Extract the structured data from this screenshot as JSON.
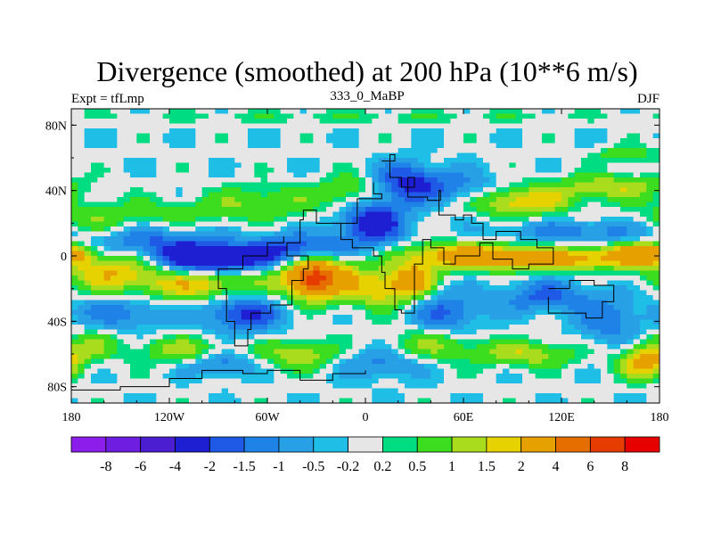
{
  "chart_data": {
    "type": "heatmap",
    "title": "Divergence (smoothed) at 200 hPa (10**6 m/s)",
    "subtitle_left": "Expt = tfLmp",
    "subtitle_center": "333_0_MaBP",
    "subtitle_right": "DJF",
    "x_range": [
      -180,
      180
    ],
    "y_range": [
      -90,
      90
    ],
    "x_ticks": [
      {
        "value": -180,
        "label": "180"
      },
      {
        "value": -120,
        "label": "120W"
      },
      {
        "value": -60,
        "label": "60W"
      },
      {
        "value": 0,
        "label": "0"
      },
      {
        "value": 60,
        "label": "60E"
      },
      {
        "value": 120,
        "label": "120E"
      },
      {
        "value": 180,
        "label": "180"
      }
    ],
    "y_ticks": [
      {
        "value": 80,
        "label": "80N"
      },
      {
        "value": 40,
        "label": "40N"
      },
      {
        "value": 0,
        "label": "0"
      },
      {
        "value": -40,
        "label": "40S"
      },
      {
        "value": -80,
        "label": "80S"
      }
    ],
    "colorbar": {
      "levels": [
        "-8",
        "-6",
        "-4",
        "-2",
        "-1.5",
        "-1",
        "-0.5",
        "-0.2",
        "0.2",
        "0.5",
        "1",
        "1.5",
        "2",
        "4",
        "6",
        "8"
      ],
      "colors": [
        "#8c1eec",
        "#6e1ee0",
        "#4b1ed2",
        "#1e1ed2",
        "#1e5ae6",
        "#1e82e6",
        "#28a0e6",
        "#1ebee6",
        "#e6e6e6",
        "#00dc82",
        "#3cdc1e",
        "#aadc1e",
        "#e6d200",
        "#e6a000",
        "#e66e00",
        "#e63c00",
        "#e60000"
      ]
    },
    "field": {
      "background": -0.1,
      "blobs": [
        {
          "lon": -170,
          "lat": 20,
          "rx": 25,
          "ry": 12,
          "amp": 0.8
        },
        {
          "lon": -120,
          "lat": 26,
          "rx": 60,
          "ry": 9,
          "amp": 0.7
        },
        {
          "lon": -60,
          "lat": 34,
          "rx": 35,
          "ry": 10,
          "amp": 1.0
        },
        {
          "lon": -10,
          "lat": 40,
          "rx": 18,
          "ry": 10,
          "amp": 1.2
        },
        {
          "lon": -130,
          "lat": 8,
          "rx": 45,
          "ry": 9,
          "amp": -1.5
        },
        {
          "lon": -95,
          "lat": -2,
          "rx": 30,
          "ry": 8,
          "amp": -3.5
        },
        {
          "lon": -40,
          "lat": 3,
          "rx": 30,
          "ry": 10,
          "amp": -2.5
        },
        {
          "lon": 5,
          "lat": 20,
          "rx": 20,
          "ry": 14,
          "amp": -2.5
        },
        {
          "lon": 25,
          "lat": 45,
          "rx": 18,
          "ry": 12,
          "amp": -2.0
        },
        {
          "lon": 55,
          "lat": 42,
          "rx": 25,
          "ry": 10,
          "amp": -1.2
        },
        {
          "lon": 95,
          "lat": 33,
          "rx": 30,
          "ry": 9,
          "amp": 2.0
        },
        {
          "lon": 150,
          "lat": 42,
          "rx": 35,
          "ry": 8,
          "amp": 1.5
        },
        {
          "lon": 160,
          "lat": 62,
          "rx": 20,
          "ry": 5,
          "amp": 1.0
        },
        {
          "lon": 130,
          "lat": 15,
          "rx": 50,
          "ry": 7,
          "amp": -1.2
        },
        {
          "lon": 60,
          "lat": 0,
          "rx": 40,
          "ry": 8,
          "amp": 2.5
        },
        {
          "lon": 120,
          "lat": -2,
          "rx": 50,
          "ry": 7,
          "amp": 2.5
        },
        {
          "lon": 170,
          "lat": 2,
          "rx": 20,
          "ry": 6,
          "amp": 3.0
        },
        {
          "lon": -155,
          "lat": -10,
          "rx": 30,
          "ry": 12,
          "amp": 2.0
        },
        {
          "lon": -100,
          "lat": -18,
          "rx": 35,
          "ry": 10,
          "amp": 2.0
        },
        {
          "lon": -30,
          "lat": -12,
          "rx": 22,
          "ry": 14,
          "amp": 4.5
        },
        {
          "lon": -32,
          "lat": -15,
          "rx": 8,
          "ry": 6,
          "amp": 4.0
        },
        {
          "lon": 10,
          "lat": -20,
          "rx": 18,
          "ry": 12,
          "amp": 2.0
        },
        {
          "lon": 30,
          "lat": -15,
          "rx": 12,
          "ry": 10,
          "amp": 2.5
        },
        {
          "lon": -150,
          "lat": -35,
          "rx": 30,
          "ry": 10,
          "amp": -1.2
        },
        {
          "lon": -75,
          "lat": -35,
          "rx": 25,
          "ry": 12,
          "amp": -2.0
        },
        {
          "lon": 50,
          "lat": -35,
          "rx": 20,
          "ry": 12,
          "amp": -1.5
        },
        {
          "lon": 110,
          "lat": -25,
          "rx": 30,
          "ry": 10,
          "amp": -1.5
        },
        {
          "lon": 150,
          "lat": -40,
          "rx": 20,
          "ry": 15,
          "amp": -1.2
        },
        {
          "lon": -170,
          "lat": -55,
          "rx": 20,
          "ry": 10,
          "amp": 1.0
        },
        {
          "lon": -110,
          "lat": -58,
          "rx": 30,
          "ry": 8,
          "amp": 1.5
        },
        {
          "lon": -40,
          "lat": -60,
          "rx": 25,
          "ry": 9,
          "amp": 1.5
        },
        {
          "lon": 40,
          "lat": -55,
          "rx": 30,
          "ry": 10,
          "amp": 1.2
        },
        {
          "lon": 100,
          "lat": -60,
          "rx": 30,
          "ry": 8,
          "amp": 1.5
        },
        {
          "lon": 170,
          "lat": -65,
          "rx": 15,
          "ry": 10,
          "amp": 2.5
        },
        {
          "lon": -90,
          "lat": -65,
          "rx": 20,
          "ry": 8,
          "amp": -1.5
        },
        {
          "lon": 10,
          "lat": -65,
          "rx": 25,
          "ry": 10,
          "amp": -1.2
        },
        {
          "lon": 0,
          "lat": 85,
          "rx": 200,
          "ry": 4,
          "amp": 0.5
        }
      ]
    },
    "continent_outline": [
      [
        [
          10,
          58
        ],
        [
          18,
          62
        ],
        [
          15,
          48
        ],
        [
          22,
          42
        ],
        [
          30,
          48
        ],
        [
          26,
          36
        ],
        [
          38,
          34
        ],
        [
          46,
          40
        ],
        [
          45,
          25
        ],
        [
          55,
          22
        ],
        [
          60,
          25
        ],
        [
          65,
          20
        ],
        [
          72,
          10
        ],
        [
          80,
          15
        ],
        [
          95,
          10
        ],
        [
          105,
          5
        ],
        [
          115,
          -5
        ],
        [
          100,
          -8
        ],
        [
          90,
          -2
        ],
        [
          78,
          8
        ],
        [
          70,
          0
        ],
        [
          55,
          -5
        ],
        [
          48,
          5
        ],
        [
          40,
          10
        ],
        [
          35,
          -5
        ],
        [
          30,
          -35
        ],
        [
          22,
          -33
        ],
        [
          18,
          -20
        ],
        [
          12,
          -10
        ],
        [
          10,
          0
        ],
        [
          5,
          5
        ],
        [
          -8,
          10
        ],
        [
          -15,
          20
        ],
        [
          -5,
          35
        ],
        [
          10,
          38
        ],
        [
          5,
          45
        ]
      ],
      [
        [
          -15,
          20
        ],
        [
          -30,
          28
        ],
        [
          -38,
          22
        ],
        [
          -40,
          8
        ],
        [
          -48,
          0
        ],
        [
          -35,
          -8
        ],
        [
          -38,
          -15
        ],
        [
          -45,
          -30
        ],
        [
          -58,
          -35
        ],
        [
          -70,
          -45
        ],
        [
          -72,
          -55
        ],
        [
          -80,
          -40
        ],
        [
          -85,
          -20
        ],
        [
          -90,
          -8
        ],
        [
          -75,
          0
        ],
        [
          -60,
          8
        ],
        [
          -50,
          12
        ]
      ],
      [
        [
          112,
          -20
        ],
        [
          125,
          -15
        ],
        [
          140,
          -18
        ],
        [
          152,
          -28
        ],
        [
          145,
          -38
        ],
        [
          135,
          -35
        ],
        [
          120,
          -35
        ],
        [
          112,
          -25
        ]
      ],
      [
        [
          -180,
          -82
        ],
        [
          -150,
          -80
        ],
        [
          -120,
          -75
        ],
        [
          -100,
          -70
        ],
        [
          -75,
          -72
        ],
        [
          -60,
          -70
        ],
        [
          -40,
          -76
        ],
        [
          -20,
          -72
        ],
        [
          0,
          -70
        ]
      ]
    ]
  }
}
